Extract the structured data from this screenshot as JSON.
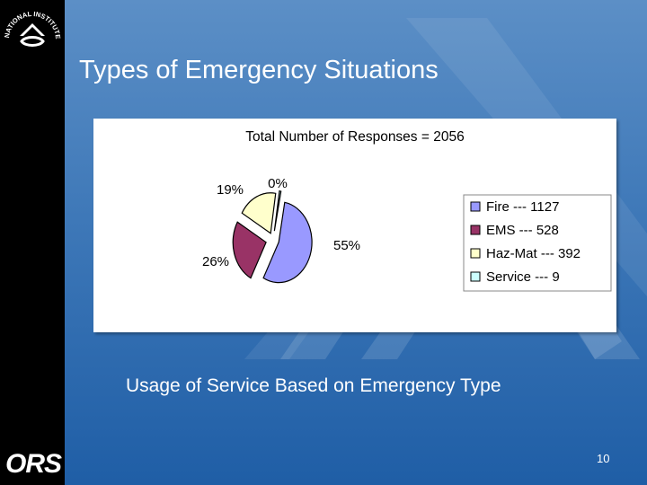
{
  "slide": {
    "title": "Types of Emergency Situations",
    "caption": "Usage of Service Based on Emergency Type",
    "page_number": "10",
    "logo_top_text": "NATIONAL INSTITUTES OF HEALTH",
    "logo_bottom_text": "ORS"
  },
  "chart_data": {
    "type": "pie",
    "title": "Total Number of Responses = 2056",
    "slices": [
      {
        "label": "Fire",
        "value": 1127,
        "percent_label": "55%",
        "legend": "Fire --- 1127",
        "color": "#9999ff"
      },
      {
        "label": "EMS",
        "value": 528,
        "percent_label": "26%",
        "legend": "EMS --- 528",
        "color": "#993366"
      },
      {
        "label": "Haz-Mat",
        "value": 392,
        "percent_label": "19%",
        "legend": "Haz-Mat --- 392",
        "color": "#ffffcc"
      },
      {
        "label": "Service",
        "value": 9,
        "percent_label": "0%",
        "legend": "Service --- 9",
        "color": "#ccffff"
      }
    ],
    "legend_position": "right",
    "exploded": true
  }
}
